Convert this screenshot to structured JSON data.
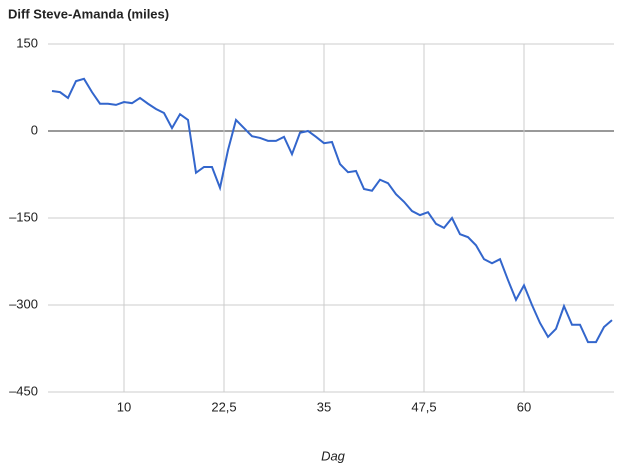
{
  "chart_data": {
    "type": "line",
    "title": "Diff Steve-Amanda (miles)",
    "x_label": "Dag",
    "x": [
      1,
      2,
      3,
      4,
      5,
      6,
      7,
      8,
      9,
      10,
      11,
      12,
      13,
      14,
      15,
      16,
      17,
      18,
      19,
      20,
      21,
      22,
      23,
      24,
      25,
      26,
      27,
      28,
      29,
      30,
      31,
      32,
      33,
      34,
      35,
      36,
      37,
      38,
      39,
      40,
      41,
      42,
      43,
      44,
      45,
      46,
      47,
      48,
      49,
      50,
      51,
      52,
      53,
      54,
      55,
      56,
      57,
      58,
      59,
      60,
      61,
      62,
      63,
      64,
      65,
      66,
      67,
      68,
      69,
      70,
      71
    ],
    "series": [
      {
        "name": "Diff",
        "color": "#3366cc",
        "values": [
          69,
          67,
          57,
          86,
          90,
          67,
          47,
          47,
          45,
          50,
          48,
          57,
          47,
          38,
          31,
          5,
          29,
          19,
          -72,
          -62,
          -62,
          -98,
          -33,
          19,
          5,
          -9,
          -12,
          -17,
          -17,
          -10,
          -40,
          -3,
          0,
          -10,
          -21,
          -19,
          -57,
          -71,
          -69,
          -100,
          -103,
          -84,
          -90,
          -109,
          -122,
          -138,
          -145,
          -140,
          -160,
          -167,
          -150,
          -178,
          -183,
          -197,
          -221,
          -228,
          -221,
          -257,
          -291,
          -266,
          -300,
          -331,
          -355,
          -341,
          -302,
          -334,
          -334,
          -364,
          -364,
          -338,
          -326
        ]
      }
    ],
    "xlim": [
      0.5,
      71.25
    ],
    "xticks": [
      10,
      {
        "value": 22.5,
        "label": "22,5"
      },
      35,
      {
        "value": 47.5,
        "label": "47,5"
      },
      60
    ],
    "ylim": [
      -450,
      150
    ],
    "yticks": [
      {
        "value": -450,
        "label": "–450"
      },
      {
        "value": -300,
        "label": "–300"
      },
      {
        "value": -150,
        "label": "–150"
      },
      0,
      150
    ],
    "grid": true
  }
}
